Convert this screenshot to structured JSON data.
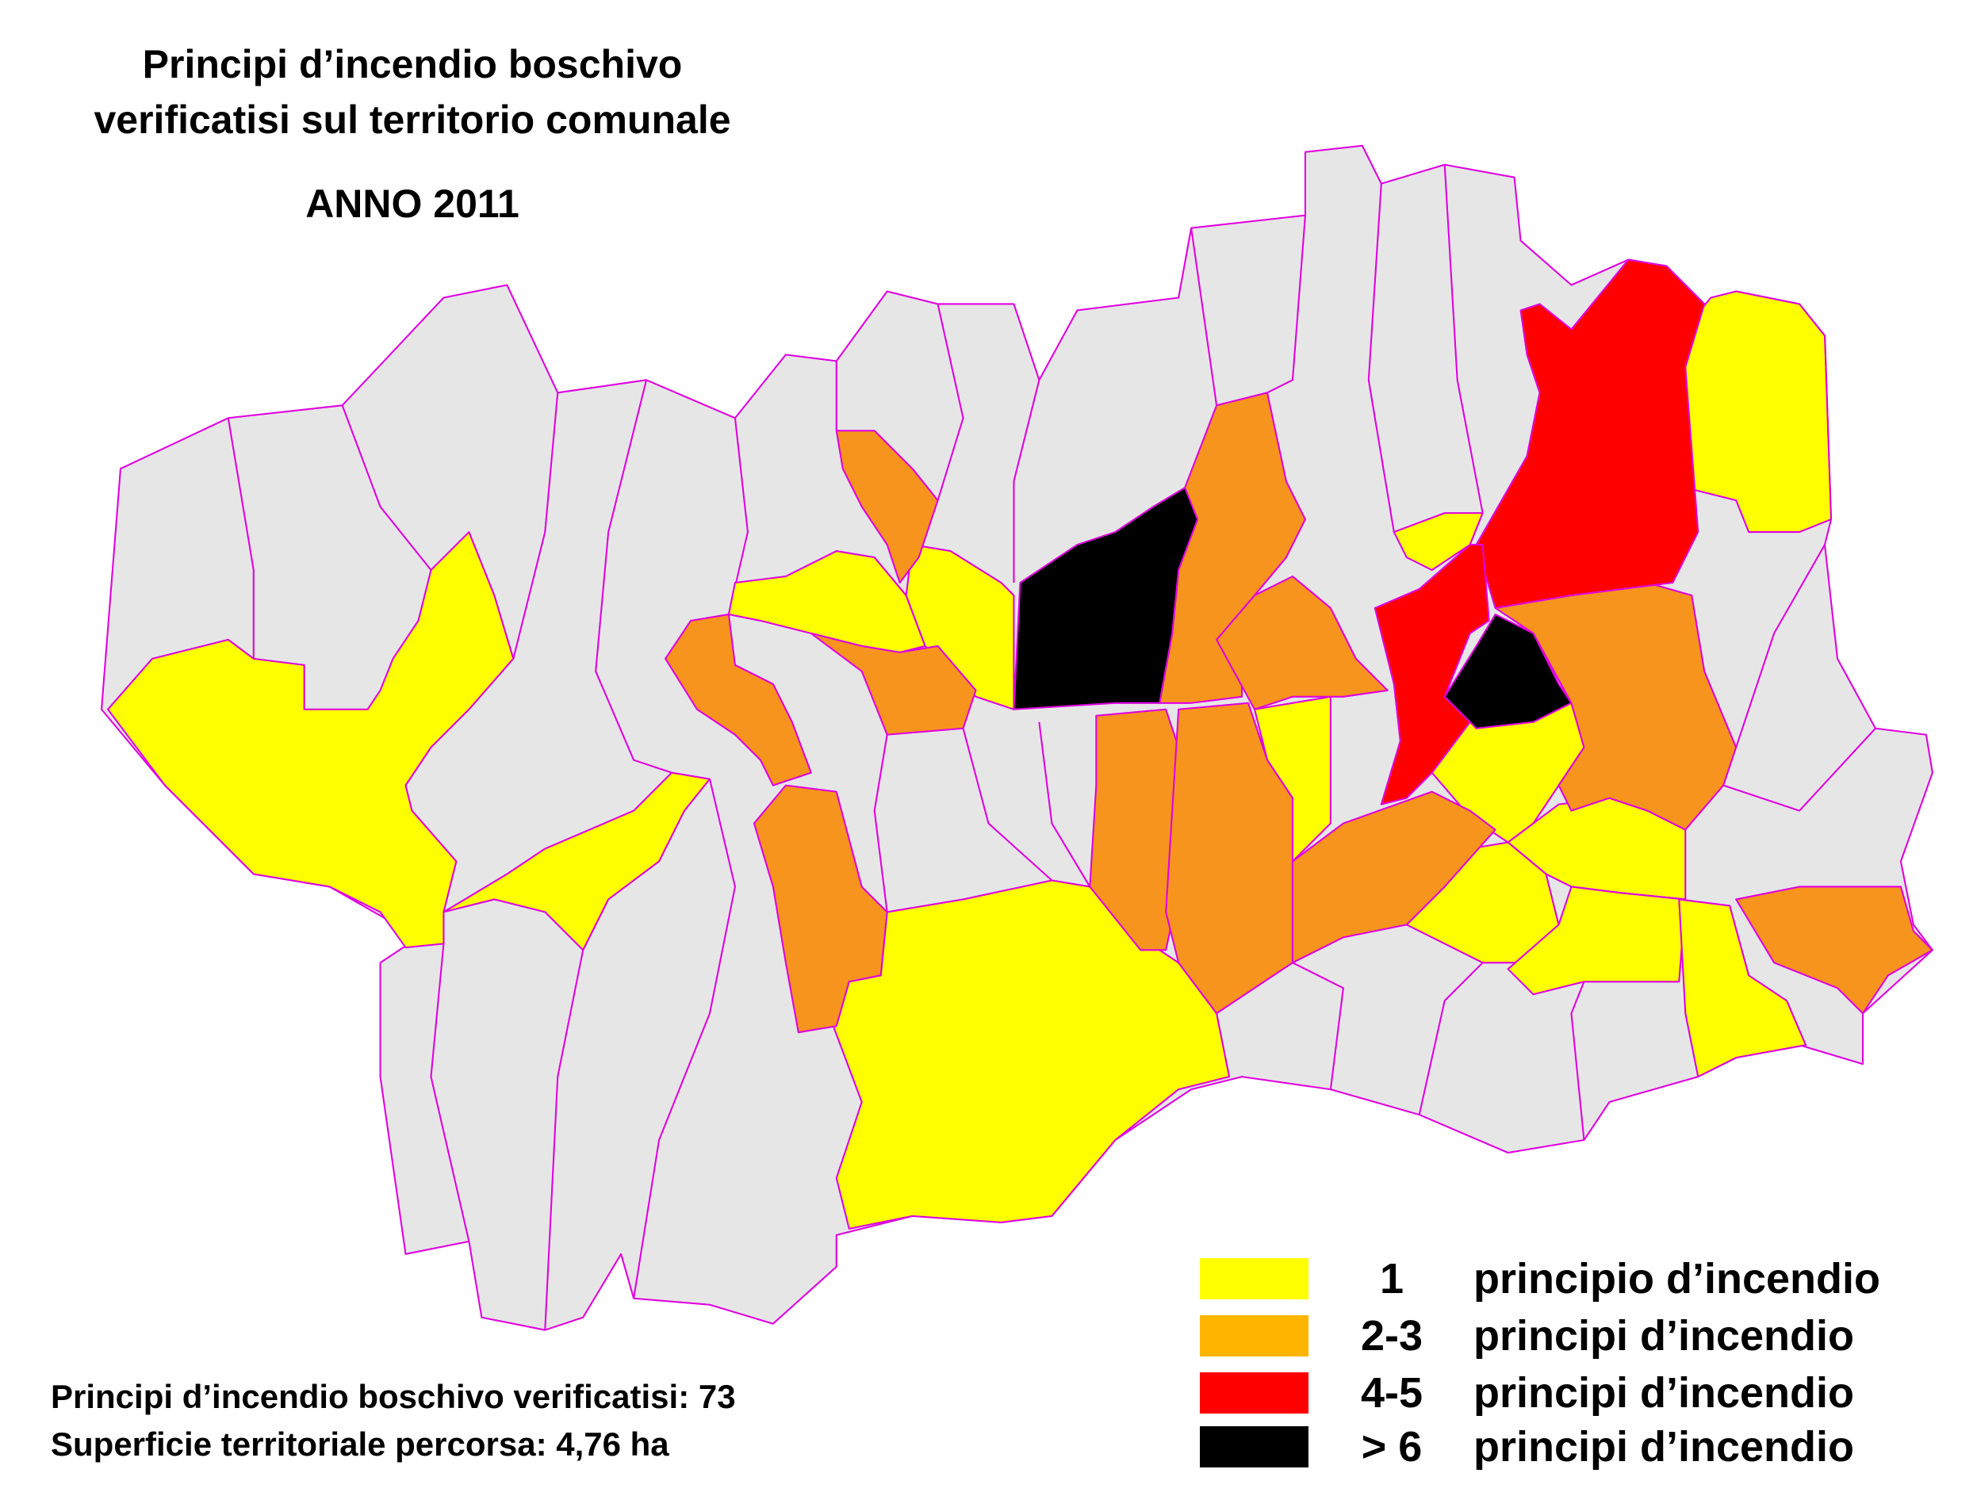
{
  "title": {
    "line1": "Principi d’incendio boschivo",
    "line2": "verificatisi sul territorio comunale",
    "year": "ANNO  2011"
  },
  "colors": {
    "none": "#E6E6E6",
    "border": "#E000E0",
    "class_1": "#FFFF00",
    "class_2_3_map": "#F7941D",
    "class_2_3_legend": "#FFB400",
    "class_4_5": "#FF0000",
    "class_6_plus": "#000000"
  },
  "legend": [
    {
      "range": "1",
      "label": "principio d’incendio",
      "color": "#FFFF00"
    },
    {
      "range": "2-3",
      "label": "principi d’incendio",
      "color": "#FFB400"
    },
    {
      "range": "4-5",
      "label": "principi d’incendio",
      "color": "#FF0000"
    },
    {
      "range": "> 6",
      "label": "principi d’incendio",
      "color": "#000000"
    }
  ],
  "stats": {
    "fires": "Principi d’incendio boschivo verificatisi:  73",
    "area": "Superficie territoriale percorsa: 4,76 ha"
  }
}
